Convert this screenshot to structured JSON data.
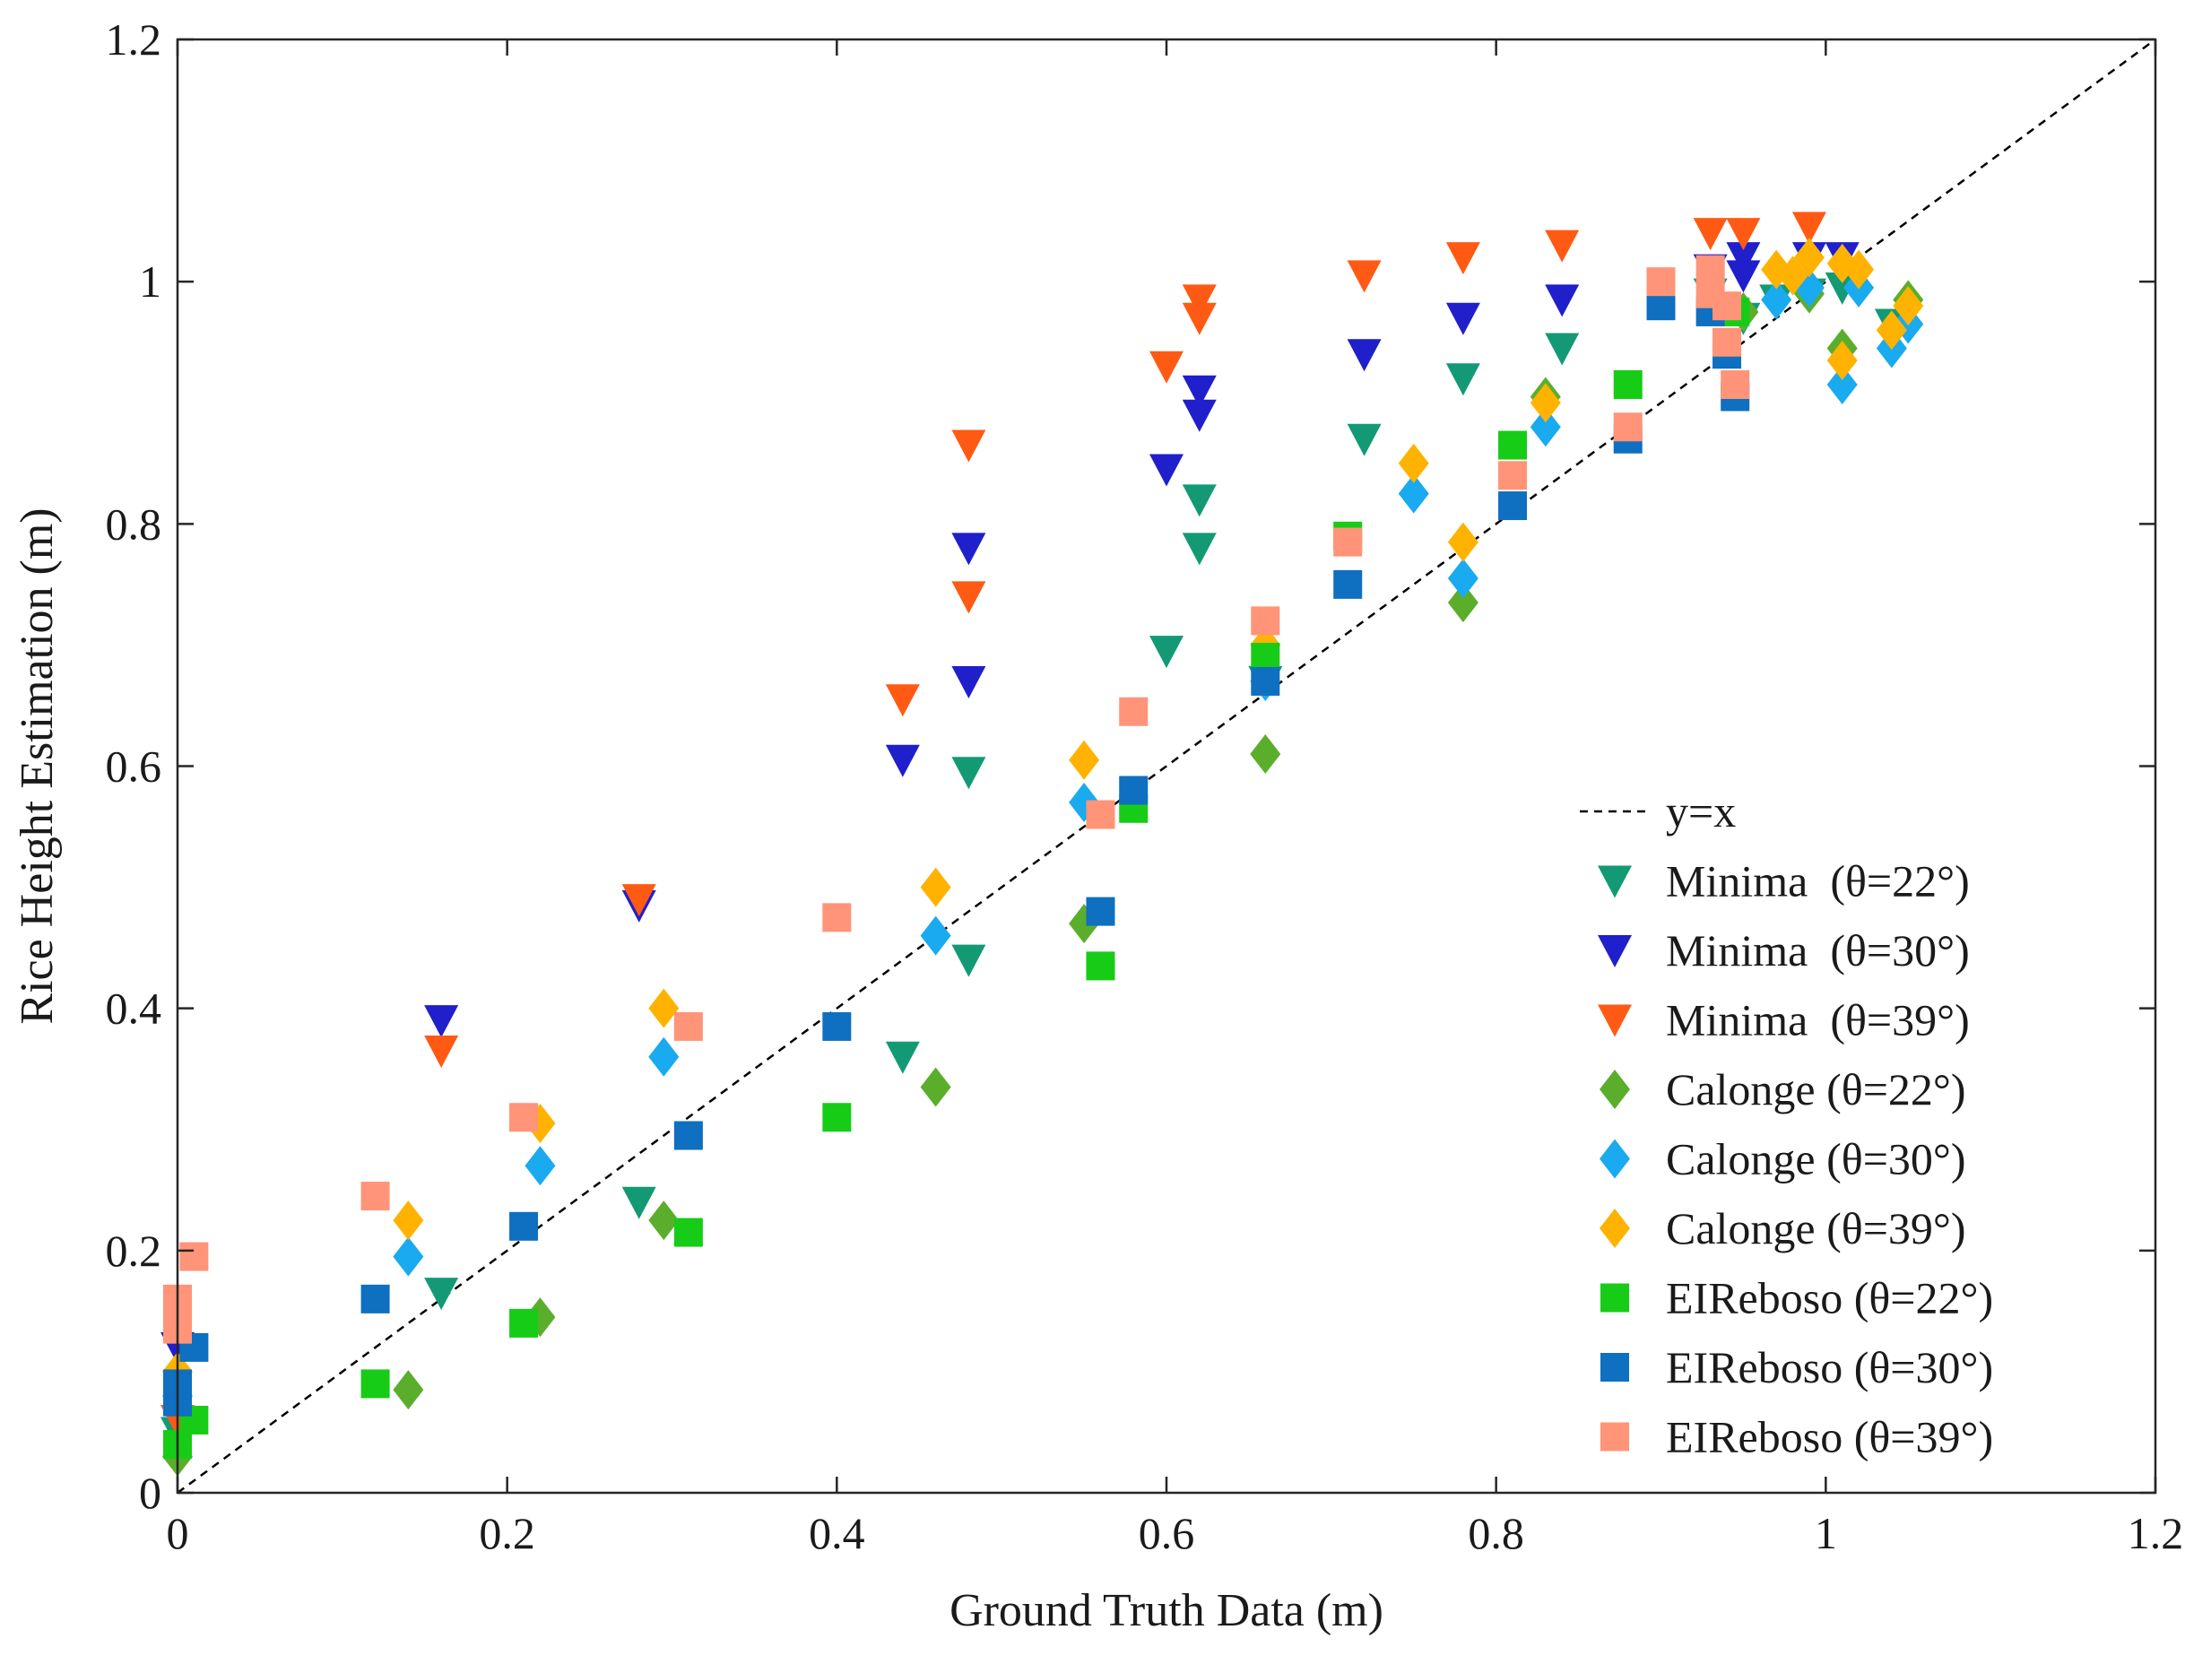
{
  "chart_data": {
    "type": "scatter",
    "title": "",
    "xlabel": "Ground Truth Data (m)",
    "ylabel": "Rice Height Estimation (m)",
    "xlim": [
      0,
      1.2
    ],
    "ylim": [
      0,
      1.2
    ],
    "xticks": [
      "0",
      "0.2",
      "0.4",
      "0.6",
      "0.8",
      "1",
      "1.2"
    ],
    "yticks": [
      "0",
      "0.2",
      "0.4",
      "0.6",
      "0.8",
      "1",
      "1.2"
    ],
    "grid": false,
    "legend_position": "bottom-right",
    "reference_line": {
      "name": "y=x",
      "style": "dashed",
      "color": "#000000"
    },
    "series": [
      {
        "name": "Minima  (θ=22°)",
        "marker": "triangle-down",
        "color": "#139A75",
        "points": [
          [
            0,
            0.05
          ],
          [
            0.16,
            0.165
          ],
          [
            0.28,
            0.24
          ],
          [
            0.44,
            0.36
          ],
          [
            0.48,
            0.595
          ],
          [
            0.48,
            0.44
          ],
          [
            0.6,
            0.695
          ],
          [
            0.62,
            0.82
          ],
          [
            0.62,
            0.78
          ],
          [
            0.66,
            0.67
          ],
          [
            0.72,
            0.87
          ],
          [
            0.78,
            0.92
          ],
          [
            0.84,
            0.945
          ],
          [
            0.93,
            0.99
          ],
          [
            0.95,
            0.97
          ],
          [
            0.97,
            0.985
          ],
          [
            0.99,
            0.99
          ],
          [
            1.01,
            0.995
          ],
          [
            1.04,
            0.965
          ]
        ]
      },
      {
        "name": "Minima  (θ=30°)",
        "marker": "triangle-down",
        "color": "#1F1FCC",
        "points": [
          [
            0,
            0.12
          ],
          [
            0.16,
            0.39
          ],
          [
            0.28,
            0.485
          ],
          [
            0.44,
            0.605
          ],
          [
            0.48,
            0.78
          ],
          [
            0.48,
            0.67
          ],
          [
            0.6,
            0.845
          ],
          [
            0.62,
            0.91
          ],
          [
            0.62,
            0.89
          ],
          [
            0.72,
            0.94
          ],
          [
            0.78,
            0.97
          ],
          [
            0.84,
            0.985
          ],
          [
            0.93,
            1.01
          ],
          [
            0.95,
            1.02
          ],
          [
            0.95,
            1.005
          ],
          [
            0.99,
            1.02
          ],
          [
            1.01,
            1.02
          ]
        ]
      },
      {
        "name": "Minima  (θ=39°)",
        "marker": "triangle-down",
        "color": "#FF5A14",
        "points": [
          [
            0,
            0.06
          ],
          [
            0.16,
            0.365
          ],
          [
            0.28,
            0.49
          ],
          [
            0.44,
            0.655
          ],
          [
            0.48,
            0.865
          ],
          [
            0.48,
            0.74
          ],
          [
            0.6,
            0.93
          ],
          [
            0.62,
            0.985
          ],
          [
            0.62,
            0.97
          ],
          [
            0.72,
            1.005
          ],
          [
            0.78,
            1.02
          ],
          [
            0.84,
            1.03
          ],
          [
            0.93,
            1.04
          ],
          [
            0.95,
            1.04
          ],
          [
            0.99,
            1.045
          ]
        ]
      },
      {
        "name": "Calonge (θ=22°)",
        "marker": "diamond",
        "color": "#5BAE2C",
        "points": [
          [
            0,
            0.03
          ],
          [
            0.14,
            0.085
          ],
          [
            0.22,
            0.145
          ],
          [
            0.295,
            0.225
          ],
          [
            0.46,
            0.335
          ],
          [
            0.55,
            0.47
          ],
          [
            0.66,
            0.61
          ],
          [
            0.78,
            0.735
          ],
          [
            0.83,
            0.905
          ],
          [
            0.95,
            0.975
          ],
          [
            0.99,
            0.99
          ],
          [
            1.01,
            0.945
          ],
          [
            1.05,
            0.985
          ]
        ]
      },
      {
        "name": "Calonge (θ=30°)",
        "marker": "diamond",
        "color": "#1AAAF0",
        "points": [
          [
            0,
            0.08
          ],
          [
            0.14,
            0.195
          ],
          [
            0.22,
            0.27
          ],
          [
            0.295,
            0.36
          ],
          [
            0.46,
            0.46
          ],
          [
            0.55,
            0.57
          ],
          [
            0.66,
            0.67
          ],
          [
            0.75,
            0.825
          ],
          [
            0.78,
            0.755
          ],
          [
            0.83,
            0.88
          ],
          [
            0.97,
            0.985
          ],
          [
            0.99,
            0.995
          ],
          [
            1.01,
            0.915
          ],
          [
            1.02,
            0.995
          ],
          [
            1.04,
            0.945
          ],
          [
            1.05,
            0.965
          ]
        ]
      },
      {
        "name": "Calonge (θ=39°)",
        "marker": "diamond",
        "color": "#FFB300",
        "points": [
          [
            0,
            0.1
          ],
          [
            0.14,
            0.225
          ],
          [
            0.22,
            0.305
          ],
          [
            0.295,
            0.4
          ],
          [
            0.46,
            0.5
          ],
          [
            0.55,
            0.605
          ],
          [
            0.66,
            0.7
          ],
          [
            0.75,
            0.85
          ],
          [
            0.78,
            0.785
          ],
          [
            0.83,
            0.9
          ],
          [
            0.97,
            1.01
          ],
          [
            0.98,
            1.005
          ],
          [
            0.99,
            1.02
          ],
          [
            1.01,
            0.935
          ],
          [
            1.01,
            1.015
          ],
          [
            1.02,
            1.01
          ],
          [
            1.04,
            0.96
          ],
          [
            1.05,
            0.98
          ]
        ]
      },
      {
        "name": "EIReboso (θ=22°)",
        "marker": "square",
        "color": "#17CC17",
        "points": [
          [
            0,
            0.04
          ],
          [
            0.01,
            0.06
          ],
          [
            0.12,
            0.09
          ],
          [
            0.21,
            0.14
          ],
          [
            0.31,
            0.215
          ],
          [
            0.4,
            0.31
          ],
          [
            0.56,
            0.435
          ],
          [
            0.58,
            0.565
          ],
          [
            0.66,
            0.69
          ],
          [
            0.71,
            0.79
          ],
          [
            0.81,
            0.865
          ],
          [
            0.88,
            0.915
          ],
          [
            0.945,
            0.975
          ]
        ]
      },
      {
        "name": "EIReboso (θ=30°)",
        "marker": "square",
        "color": "#0F6FC0",
        "points": [
          [
            0,
            0.075
          ],
          [
            0,
            0.09
          ],
          [
            0.01,
            0.12
          ],
          [
            0.12,
            0.16
          ],
          [
            0.21,
            0.22
          ],
          [
            0.31,
            0.295
          ],
          [
            0.4,
            0.385
          ],
          [
            0.56,
            0.48
          ],
          [
            0.58,
            0.58
          ],
          [
            0.66,
            0.67
          ],
          [
            0.71,
            0.75
          ],
          [
            0.81,
            0.815
          ],
          [
            0.88,
            0.87
          ],
          [
            0.9,
            0.98
          ],
          [
            0.93,
            0.975
          ],
          [
            0.94,
            0.94
          ],
          [
            0.945,
            0.905
          ]
        ]
      },
      {
        "name": "EIReboso (θ=39°)",
        "marker": "square",
        "color": "#FF9478",
        "points": [
          [
            0,
            0.135
          ],
          [
            0,
            0.15
          ],
          [
            0,
            0.16
          ],
          [
            0.01,
            0.195
          ],
          [
            0.12,
            0.245
          ],
          [
            0.21,
            0.31
          ],
          [
            0.31,
            0.385
          ],
          [
            0.4,
            0.475
          ],
          [
            0.56,
            0.56
          ],
          [
            0.58,
            0.645
          ],
          [
            0.66,
            0.72
          ],
          [
            0.71,
            0.785
          ],
          [
            0.81,
            0.84
          ],
          [
            0.88,
            0.88
          ],
          [
            0.9,
            1.0
          ],
          [
            0.93,
            1.01
          ],
          [
            0.93,
            0.99
          ],
          [
            0.94,
            0.98
          ],
          [
            0.94,
            0.95
          ],
          [
            0.945,
            0.915
          ]
        ]
      }
    ]
  }
}
